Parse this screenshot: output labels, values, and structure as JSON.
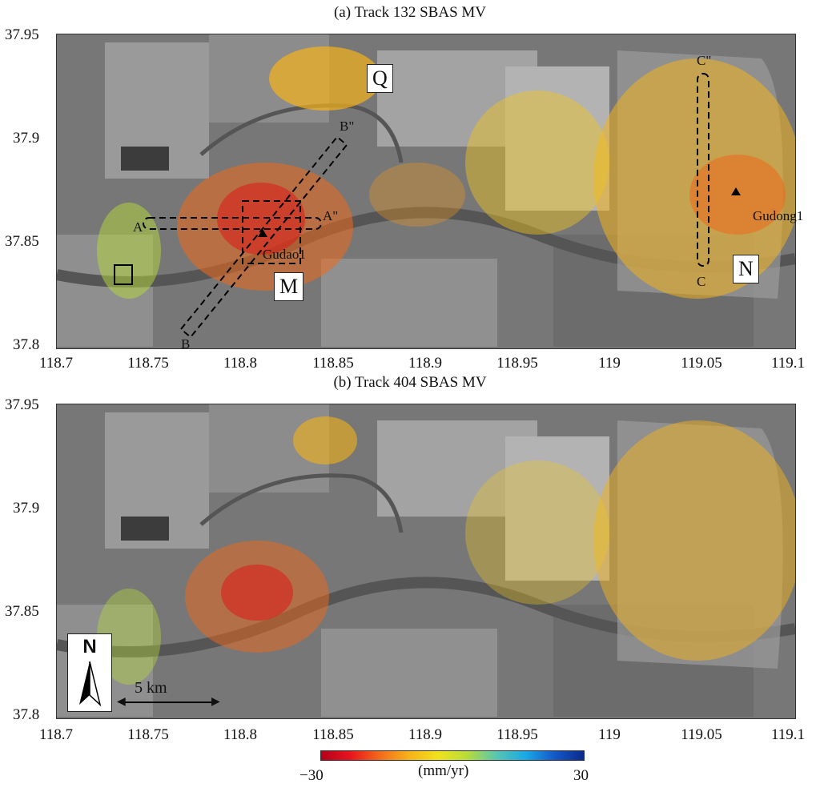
{
  "panels": [
    {
      "title": "(a) Track 132 SBAS MV",
      "y_ticks": [
        "37.95",
        "37.9",
        "37.85",
        "37.8"
      ],
      "x_ticks": [
        "118.7",
        "118.75",
        "118.8",
        "118.85",
        "118.9",
        "118.95",
        "119",
        "119.05",
        "119.1"
      ],
      "region_labels": [
        "Q",
        "M",
        "N"
      ],
      "profile_labels": {
        "a": "A",
        "a2": "A\"",
        "b": "B",
        "b2": "B\"",
        "c": "C",
        "c2": "C\""
      },
      "wells": [
        "Gudao1",
        "Gudong1"
      ]
    },
    {
      "title": "(b) Track 404 SBAS MV",
      "y_ticks": [
        "37.95",
        "37.9",
        "37.85",
        "37.8"
      ],
      "x_ticks": [
        "118.7",
        "118.75",
        "118.8",
        "118.85",
        "118.9",
        "118.95",
        "119",
        "119.05",
        "119.1"
      ],
      "scale_bar": "5 km",
      "north_label": "N"
    }
  ],
  "colorbar": {
    "min_label": "−30",
    "max_label": "30",
    "unit": "(mm/yr)",
    "colors": [
      "#b3001b",
      "#e8141d",
      "#f26a1b",
      "#f6b21a",
      "#f0e21b",
      "#b8dc3a",
      "#58c6b0",
      "#1aa9e6",
      "#1458c8",
      "#0a2a8a"
    ]
  },
  "legend": {
    "min_value": -30,
    "max_value": 30
  }
}
